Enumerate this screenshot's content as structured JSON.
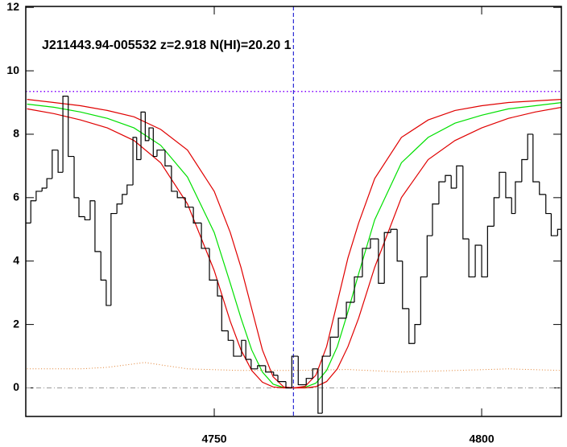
{
  "chart_data": {
    "type": "step",
    "title": "J211443.94-005532 z=2.918 N(HI)=20.20 1",
    "xlim": [
      4714.76,
      4814.9
    ],
    "ylim": [
      -0.9,
      12.03
    ],
    "xticks": [
      4750,
      4800
    ],
    "yticks": [
      0,
      2,
      4,
      6,
      8,
      10,
      12
    ],
    "color": "#000000",
    "x": [
      4714.8,
      4715.7,
      4716.7,
      4717.8,
      4718.7,
      4719.7,
      4720.8,
      4721.7,
      4722.7,
      4723.8,
      4724.7,
      4725.8,
      4726.8,
      4727.7,
      4728.8,
      4729.8,
      4730.7,
      4731.8,
      4732.8,
      4733.7,
      4734.8,
      4735.5,
      4736.3,
      4737.1,
      4737.8,
      4738.6,
      4739.3,
      4740.8,
      4742.0,
      4743.1,
      4744.6,
      4746.1,
      4747.6,
      4749.1,
      4750.6,
      4751.4,
      4752.6,
      4753.6,
      4755.1,
      4755.9,
      4756.9,
      4758.1,
      4759.6,
      4761.1,
      4761.9,
      4763.4,
      4764.5,
      4765.7,
      4767.2,
      4768.4,
      4769.4,
      4770.2,
      4771.7,
      4773.2,
      4774.7,
      4776.2,
      4777.7,
      4779.2,
      4780.7,
      4781.8,
      4783.0,
      4784.2,
      4785.2,
      4786.4,
      4787.5,
      4788.6,
      4789.8,
      4790.8,
      4792.0,
      4793.2,
      4794.3,
      4795.3,
      4796.5,
      4797.6,
      4798.8,
      4800.0,
      4801.1,
      4802.3,
      4803.3,
      4804.5,
      4805.6,
      4806.3,
      4807.5,
      4808.6,
      4809.6,
      4810.8,
      4812.0,
      4813.0,
      4814.2
    ],
    "values": [
      5.2,
      5.9,
      6.2,
      6.3,
      6.6,
      7.5,
      6.8,
      9.2,
      7.3,
      6.0,
      5.4,
      5.3,
      5.9,
      4.3,
      3.4,
      2.6,
      5.5,
      5.8,
      6.1,
      6.4,
      7.9,
      7.2,
      8.7,
      7.8,
      8.2,
      7.3,
      7.5,
      7.0,
      6.2,
      6.0,
      5.7,
      5.2,
      4.4,
      3.4,
      2.9,
      1.8,
      1.5,
      1.0,
      1.5,
      0.9,
      0.6,
      0.7,
      0.5,
      0.4,
      0.2,
      0.0,
      1.0,
      0.1,
      0.3,
      0.6,
      -0.8,
      1.0,
      1.6,
      2.2,
      2.7,
      3.5,
      4.4,
      4.7,
      3.3,
      4.9,
      5.0,
      4.0,
      2.5,
      1.4,
      2.0,
      3.5,
      4.8,
      5.8,
      6.5,
      6.7,
      6.3,
      7.0,
      4.7,
      3.5,
      4.5,
      3.5,
      5.1,
      6.0,
      6.8,
      6.0,
      5.5,
      6.5,
      7.2,
      8.0,
      6.5,
      6.1,
      5.5,
      4.8,
      5.0
    ],
    "model_x": [
      4715,
      4720,
      4725,
      4730,
      4735,
      4740,
      4745,
      4750,
      4753,
      4755,
      4757,
      4759,
      4761,
      4763,
      4765,
      4767,
      4769,
      4771,
      4773,
      4775,
      4777,
      4780,
      4785,
      4790,
      4795,
      4800,
      4805,
      4810,
      4815
    ],
    "models": [
      {
        "color": "#00e000",
        "values": [
          8.95,
          8.85,
          8.7,
          8.5,
          8.2,
          7.65,
          6.65,
          4.9,
          3.3,
          2.2,
          1.2,
          0.5,
          0.12,
          0.01,
          0.0,
          0.02,
          0.15,
          0.55,
          1.3,
          2.4,
          3.6,
          5.3,
          7.1,
          7.9,
          8.35,
          8.6,
          8.8,
          8.9,
          9.0
        ]
      },
      {
        "color": "#e00000",
        "values": [
          9.1,
          9.0,
          8.9,
          8.75,
          8.55,
          8.15,
          7.5,
          6.2,
          4.9,
          3.8,
          2.5,
          1.2,
          0.35,
          0.03,
          0.0,
          0.05,
          0.4,
          1.3,
          2.7,
          4.1,
          5.2,
          6.6,
          7.9,
          8.45,
          8.75,
          8.9,
          9.0,
          9.05,
          9.1
        ]
      },
      {
        "color": "#e00000",
        "values": [
          8.8,
          8.65,
          8.45,
          8.2,
          7.8,
          7.1,
          5.8,
          3.7,
          2.1,
          1.2,
          0.55,
          0.18,
          0.03,
          0.0,
          0.0,
          0.0,
          0.04,
          0.2,
          0.6,
          1.3,
          2.2,
          3.8,
          6.0,
          7.2,
          7.8,
          8.2,
          8.5,
          8.7,
          8.85
        ]
      }
    ],
    "error_x": [
      4715,
      4725,
      4730,
      4737,
      4745,
      4755,
      4765,
      4775,
      4785,
      4795,
      4805,
      4815
    ],
    "error_values": [
      0.6,
      0.6,
      0.65,
      0.8,
      0.6,
      0.55,
      0.55,
      0.58,
      0.5,
      0.55,
      0.6,
      0.55
    ],
    "error_color": "#e08030",
    "continuum": 9.35,
    "continuum_color": "#8000ff",
    "zero_line": 0,
    "zero_color": "#999999",
    "vline": 4764.8,
    "vline_color": "#0000cc"
  }
}
